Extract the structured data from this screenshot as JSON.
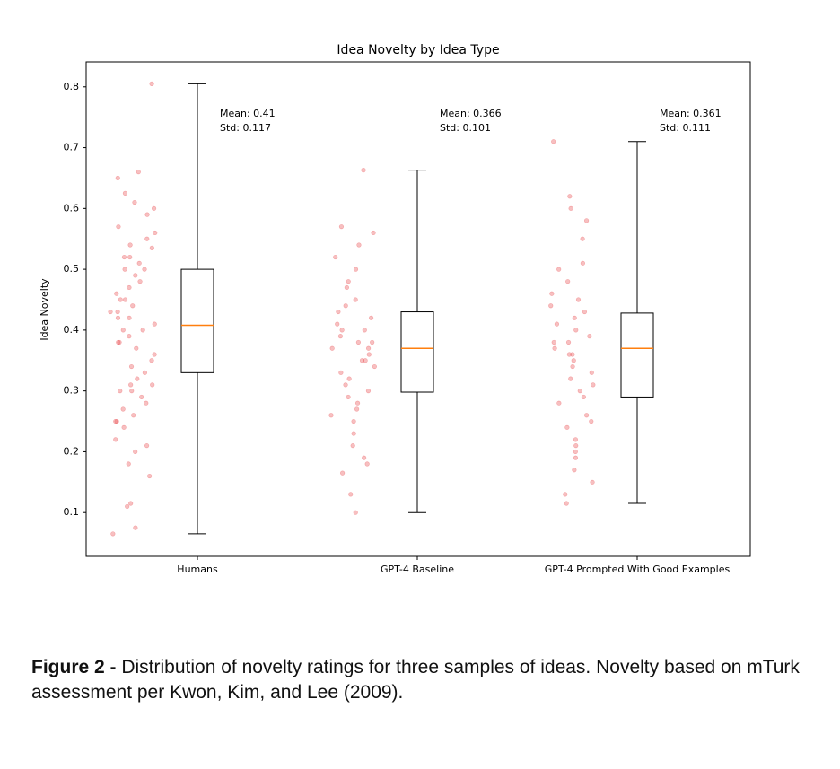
{
  "chart_data": {
    "type": "box",
    "title": "Idea Novelty by Idea Type",
    "y_label": "Idea Novelty",
    "categories": [
      "Humans",
      "GPT-4 Baseline",
      "GPT-4 Prompted With Good Examples"
    ],
    "boxes": [
      {
        "whislo": 0.065,
        "q1": 0.33,
        "median": 0.408,
        "q3": 0.5,
        "whishi": 0.805
      },
      {
        "whislo": 0.1,
        "q1": 0.298,
        "median": 0.37,
        "q3": 0.43,
        "whishi": 0.663
      },
      {
        "whislo": 0.115,
        "q1": 0.29,
        "median": 0.37,
        "q3": 0.428,
        "whishi": 0.71
      }
    ],
    "points": [
      [
        0.805,
        0.065,
        0.075,
        0.11,
        0.115,
        0.66,
        0.65,
        0.625,
        0.61,
        0.6,
        0.59,
        0.57,
        0.56,
        0.55,
        0.54,
        0.535,
        0.52,
        0.51,
        0.5,
        0.5,
        0.49,
        0.48,
        0.47,
        0.46,
        0.45,
        0.44,
        0.43,
        0.43,
        0.42,
        0.41,
        0.4,
        0.4,
        0.39,
        0.38,
        0.37,
        0.36,
        0.35,
        0.34,
        0.33,
        0.32,
        0.31,
        0.31,
        0.3,
        0.29,
        0.28,
        0.27,
        0.26,
        0.25,
        0.25,
        0.24,
        0.22,
        0.21,
        0.2,
        0.18,
        0.16,
        0.3,
        0.45,
        0.52,
        0.38,
        0.42
      ],
      [
        0.663,
        0.1,
        0.13,
        0.165,
        0.18,
        0.19,
        0.21,
        0.23,
        0.25,
        0.26,
        0.27,
        0.28,
        0.29,
        0.3,
        0.31,
        0.32,
        0.33,
        0.34,
        0.35,
        0.36,
        0.37,
        0.37,
        0.38,
        0.38,
        0.39,
        0.4,
        0.41,
        0.42,
        0.43,
        0.44,
        0.45,
        0.47,
        0.48,
        0.5,
        0.52,
        0.54,
        0.56,
        0.57,
        0.4,
        0.35
      ],
      [
        0.71,
        0.115,
        0.13,
        0.15,
        0.17,
        0.19,
        0.2,
        0.21,
        0.22,
        0.24,
        0.25,
        0.26,
        0.28,
        0.29,
        0.3,
        0.31,
        0.32,
        0.33,
        0.34,
        0.35,
        0.36,
        0.37,
        0.38,
        0.38,
        0.39,
        0.4,
        0.41,
        0.42,
        0.43,
        0.44,
        0.45,
        0.46,
        0.48,
        0.5,
        0.51,
        0.55,
        0.58,
        0.6,
        0.62,
        0.36
      ]
    ],
    "annotations": [
      [
        "Mean: 0.41",
        "Std: 0.117"
      ],
      [
        "Mean: 0.366",
        "Std: 0.101"
      ],
      [
        "Mean: 0.361",
        "Std: 0.111"
      ]
    ],
    "box_color": "#000000",
    "median_color": "#ff7f0e",
    "point_color": "#e8474a",
    "ylim": [
      0.028,
      0.841
    ],
    "yticks": [
      0.1,
      0.2,
      0.3,
      0.4,
      0.5,
      0.6,
      0.7,
      0.8
    ]
  },
  "caption": {
    "label": "Figure 2",
    "text": " - Distribution of novelty ratings for three samples of ideas. Novelty based on mTurk assessment per Kwon, Kim, and Lee (2009)."
  }
}
